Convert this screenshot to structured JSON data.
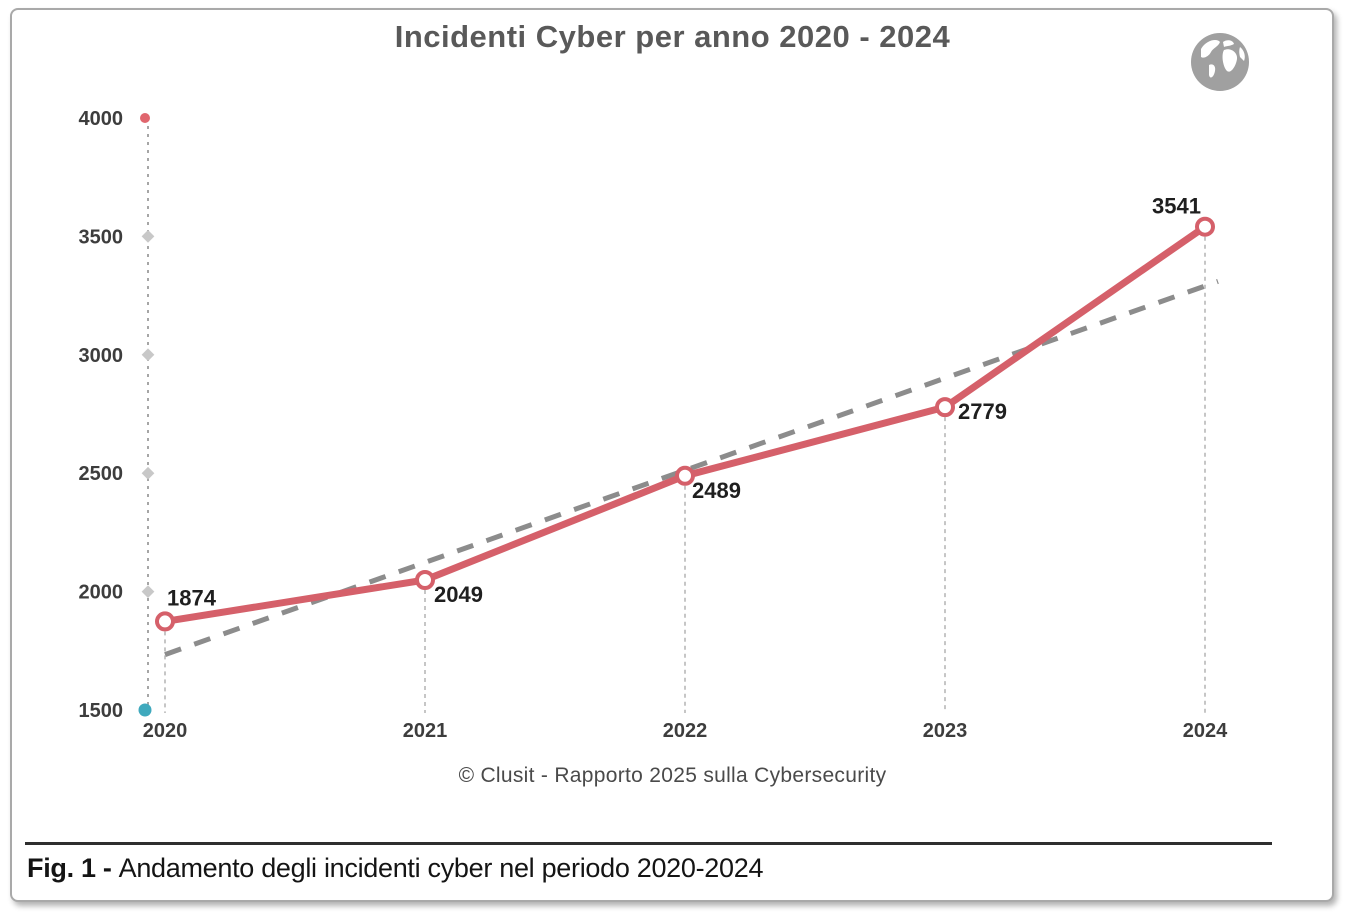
{
  "header": {
    "title": "Incidenti Cyber per anno 2020 - 2024",
    "top_right_icon": "globe-icon"
  },
  "chart_data": {
    "type": "line",
    "title": "Incidenti Cyber per anno 2020 - 2024",
    "categories": [
      "2020",
      "2021",
      "2022",
      "2023",
      "2024"
    ],
    "series": [
      {
        "name": "Incidenti cyber",
        "values": [
          1874,
          2049,
          2489,
          2779,
          3541
        ]
      }
    ],
    "data_labels": true,
    "yticks": [
      1500,
      2000,
      2500,
      3000,
      3500,
      4000
    ],
    "ylim": [
      1500,
      4000
    ],
    "xlabel": "",
    "ylabel": "",
    "grid": false,
    "legend_position": "none",
    "trendline": {
      "style": "dashed",
      "start_value": 1734,
      "end_value": 3310
    }
  },
  "colors": {
    "series_line": "#d5606a",
    "marker_fill": "#ffffff",
    "trend_line": "#8c8c8c",
    "axis_line": "#a6a6a6",
    "tick_diamond": "#c8c8c8",
    "axis_top_dot": "#e0666e",
    "axis_bottom_dot": "#3fa9bd",
    "drop_line": "#b3b3b3",
    "data_label_text": "#1f1f1f",
    "axis_text": "#3d3d3d",
    "globe": "#a0a0a0"
  },
  "footer": {
    "source_line": "© Clusit - Rapporto 2025 sulla Cybersecurity",
    "figure_caption_prefix": "Fig. 1 -",
    "figure_caption_text": "Andamento degli incidenti cyber nel periodo 2020-2024"
  }
}
